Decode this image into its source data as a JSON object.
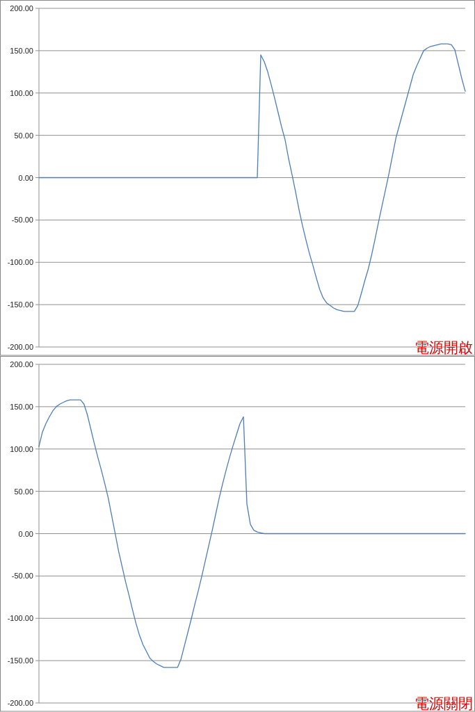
{
  "chart_data": [
    {
      "type": "line",
      "title": "電源開啟",
      "color": "#4a7ebb",
      "grid": "y",
      "ylim": [
        -200,
        200
      ],
      "yticks": [
        {
          "value": 200,
          "label": "200.00"
        },
        {
          "value": 150,
          "label": "150.00"
        },
        {
          "value": 100,
          "label": "100.00"
        },
        {
          "value": 50,
          "label": "50.00"
        },
        {
          "value": 0,
          "label": "0.00"
        },
        {
          "value": -50,
          "label": "-50.00"
        },
        {
          "value": -100,
          "label": "-100.00"
        },
        {
          "value": -150,
          "label": "-150.00"
        },
        {
          "value": -200,
          "label": "-200.00"
        }
      ],
      "categories": [
        null,
        null,
        null,
        null,
        null,
        null,
        null,
        null,
        null,
        null,
        null,
        null,
        null,
        null,
        null,
        null,
        null,
        null,
        null,
        null,
        null,
        null,
        null,
        null,
        null,
        null,
        null,
        null,
        null,
        null,
        null,
        null,
        null,
        null,
        null,
        null,
        null,
        null,
        null,
        null,
        null,
        null,
        null,
        null,
        null,
        null,
        null,
        null,
        null,
        null,
        null,
        null,
        null,
        null,
        null,
        null,
        null,
        null,
        null,
        null,
        null,
        null,
        null,
        null,
        null,
        null,
        null,
        null,
        null,
        null,
        null,
        null,
        null,
        null,
        null,
        null,
        null,
        null,
        null,
        null,
        null,
        null,
        null,
        null,
        null,
        null,
        null,
        null,
        null,
        null,
        null,
        null,
        null,
        null,
        null,
        null,
        null,
        null,
        null,
        null,
        null,
        null,
        null,
        null,
        null,
        null,
        null,
        null,
        null,
        null,
        null,
        null,
        null,
        null,
        null,
        null,
        null,
        null,
        null,
        null,
        null,
        null,
        null,
        null
      ],
      "values": [
        0,
        0,
        0,
        0,
        0,
        0,
        0,
        0,
        0,
        0,
        0,
        0,
        0,
        0,
        0,
        0,
        0,
        0,
        0,
        0,
        0,
        0,
        0,
        0,
        0,
        0,
        0,
        0,
        0,
        0,
        0,
        0,
        0,
        0,
        0,
        0,
        0,
        0,
        0,
        0,
        0,
        0,
        0,
        0,
        0,
        0,
        0,
        0,
        0,
        0,
        0,
        0,
        0,
        0,
        0,
        0,
        0,
        0,
        0,
        0,
        0,
        0,
        0,
        0,
        145,
        137,
        125,
        110,
        94,
        77,
        60,
        45,
        23,
        4,
        -16,
        -37,
        -56,
        -73,
        -89,
        -103,
        -118,
        -132,
        -142,
        -148,
        -151,
        -154,
        -156,
        -157,
        -158,
        -158,
        -158,
        -158,
        -151,
        -137,
        -122,
        -108,
        -91,
        -72,
        -52,
        -33,
        -14,
        5,
        26,
        47,
        62,
        77,
        92,
        107,
        122,
        132,
        141,
        150,
        153,
        155,
        156,
        157,
        158,
        158,
        158,
        157,
        151,
        134,
        117,
        102
      ]
    },
    {
      "type": "line",
      "title": "電源關閉",
      "color": "#4a7ebb",
      "grid": "y",
      "ylim": [
        -200,
        200
      ],
      "yticks": [
        {
          "value": 200,
          "label": "200.00"
        },
        {
          "value": 150,
          "label": "150.00"
        },
        {
          "value": 100,
          "label": "100.00"
        },
        {
          "value": 50,
          "label": "50.00"
        },
        {
          "value": 0,
          "label": "0.00"
        },
        {
          "value": -50,
          "label": "-50.00"
        },
        {
          "value": -100,
          "label": "-100.00"
        },
        {
          "value": -150,
          "label": "-150.00"
        },
        {
          "value": -200,
          "label": "-200.00"
        }
      ],
      "categories": [
        null,
        null,
        null,
        null,
        null,
        null,
        null,
        null,
        null,
        null,
        null,
        null,
        null,
        null,
        null,
        null,
        null,
        null,
        null,
        null,
        null,
        null,
        null,
        null,
        null,
        null,
        null,
        null,
        null,
        null,
        null,
        null,
        null,
        null,
        null,
        null,
        null,
        null,
        null,
        null,
        null,
        null,
        null,
        null,
        null,
        null,
        null,
        null,
        null,
        null,
        null,
        null,
        null,
        null,
        null,
        null,
        null,
        null,
        null,
        null,
        null,
        null,
        null,
        null,
        null,
        null,
        null,
        null,
        null,
        null,
        null,
        null,
        null,
        null,
        null,
        null,
        null,
        null,
        null,
        null,
        null,
        null,
        null,
        null,
        null,
        null,
        null,
        null,
        null,
        null,
        null,
        null,
        null,
        null,
        null,
        null,
        null,
        null,
        null,
        null,
        null,
        null,
        null,
        null,
        null,
        null,
        null,
        null,
        null,
        null,
        null,
        null,
        null,
        null,
        null,
        null,
        null,
        null,
        null,
        null,
        null,
        null,
        null,
        null
      ],
      "values": [
        103,
        120,
        130,
        138,
        145,
        150,
        153,
        155,
        157,
        158,
        158,
        158,
        158,
        153,
        140,
        123,
        106,
        90,
        75,
        59,
        42,
        21,
        0,
        -21,
        -39,
        -57,
        -73,
        -90,
        -106,
        -120,
        -131,
        -139,
        -147,
        -151,
        -154,
        -156,
        -158,
        -158,
        -158,
        -158,
        -158,
        -148,
        -132,
        -116,
        -100,
        -83,
        -67,
        -50,
        -32,
        -14,
        4,
        23,
        42,
        59,
        75,
        90,
        104,
        117,
        130,
        138,
        35,
        11,
        4,
        2,
        1,
        0,
        0,
        0,
        0,
        0,
        0,
        0,
        0,
        0,
        0,
        0,
        0,
        0,
        0,
        0,
        0,
        0,
        0,
        0,
        0,
        0,
        0,
        0,
        0,
        0,
        0,
        0,
        0,
        0,
        0,
        0,
        0,
        0,
        0,
        0,
        0,
        0,
        0,
        0,
        0,
        0,
        0,
        0,
        0,
        0,
        0,
        0,
        0,
        0,
        0,
        0,
        0,
        0,
        0,
        0,
        0,
        0,
        0,
        0
      ]
    }
  ]
}
